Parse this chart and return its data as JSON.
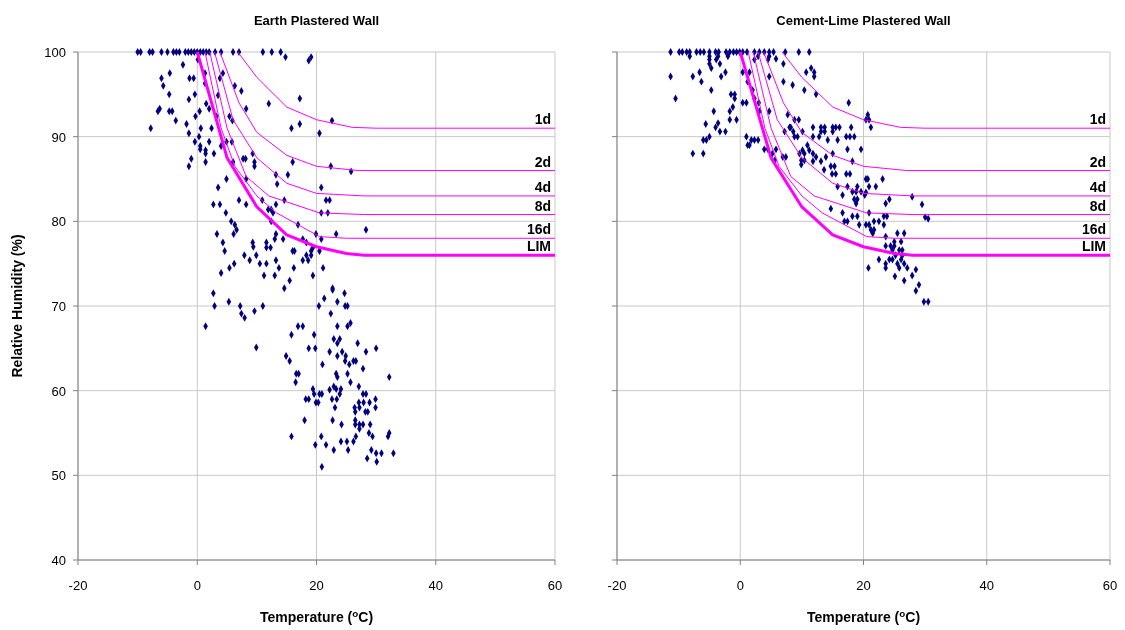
{
  "chart_data": [
    {
      "type": "scatter",
      "title": "Earth Plastered Wall",
      "xlabel": "Temperature ($^{o}$C)",
      "ylabel": "Relative Humidity (%)",
      "xlim": [
        -20,
        60
      ],
      "ylim": [
        40,
        100
      ],
      "xticks": [
        -20,
        0,
        20,
        40,
        60
      ],
      "yticks": [
        40,
        50,
        60,
        70,
        80,
        90,
        100
      ],
      "grid": true,
      "series": [
        {
          "marker": "diamond",
          "color": "#000080",
          "x": [
            -10,
            -9.5,
            -8,
            -7.5,
            -6,
            -5,
            -4,
            -3.5,
            -3,
            -2,
            -1.5,
            -1,
            -0.5,
            0,
            0.5,
            1,
            1.5,
            2,
            3,
            4,
            6,
            7,
            11,
            12.5,
            14,
            14.8,
            19.1,
            18.7,
            -2.4,
            0.1,
            -4.6,
            -6.0,
            -1.3,
            -0.6,
            1.3,
            -5.7,
            3.8,
            4.3,
            -4.7,
            -0.4,
            -1.4,
            1.3,
            3.5,
            6.3,
            7.4,
            -6.3,
            -6.6,
            -4.7,
            -4.2,
            -3.6,
            0.4,
            -0.3,
            1.5,
            2.0,
            3.2,
            5.4,
            5.9,
            8.2,
            12.0,
            17.2,
            -1.8,
            -1.4,
            -7.8,
            0.6,
            2.4,
            15.8,
            17.2,
            22.6,
            20.5,
            0.3,
            -0.4,
            0.5,
            0.5,
            1.4,
            1.4,
            2.8,
            2.0,
            4.0,
            4.9,
            5.8,
            -1.0,
            1.4,
            -1.4,
            7.7,
            8.1,
            9.3,
            9.6,
            9.6,
            16.0,
            3.5,
            4.9,
            6.0,
            8.2,
            13.2,
            13.4,
            15.2,
            22.4,
            25.8,
            20.8,
            2.7,
            3.8,
            7.0,
            8.2,
            10.9,
            11.9,
            12.4,
            12.7,
            13.2,
            14.6,
            4.8,
            21.6,
            22.2,
            20.8,
            21.9,
            12.4,
            5.7,
            6.3,
            6.6,
            6.1,
            3.3,
            4.3,
            4.6,
            13.2,
            13.0,
            14.4,
            9.3,
            9.4,
            11.6,
            11.6,
            12.3,
            16.9,
            17.7,
            18.3,
            16.0,
            16.3,
            19.4,
            19.1,
            19.9,
            20.8,
            20.5,
            23.3,
            28.3,
            7.9,
            8.8,
            9.9,
            10.5,
            11.6,
            13.2,
            17.7,
            18.6,
            19.1,
            18.3,
            21.1,
            19.4,
            4.0,
            5.4,
            6.2,
            16.2,
            13.7,
            15.5,
            14.6,
            22.7,
            11.2,
            13.0,
            2.7,
            5.3,
            2.9,
            7.2,
            11.0,
            7.4,
            7.95,
            9.6,
            1.4,
            9.9,
            14.9,
            15.5,
            16.6,
            17.0,
            16.5,
            15.8,
            16.9,
            17.7,
            18.7,
            19.8,
            19.6,
            20.4,
            21.3,
            22.7,
            24.7,
            23.5,
            24.8,
            25.2,
            22.4,
            25.7,
            23.5,
            25.2,
            22.9,
            23.9,
            23.5,
            26.9,
            22.2,
            24.3,
            23.5,
            24.9,
            28.3,
            30.0,
            24.8,
            26.2,
            26.6,
            25.5,
            21.0,
            23.3,
            25.2,
            23.5,
            27.8,
            25.7,
            27.1,
            32.2,
            19.4,
            22.2,
            22.9,
            23.3,
            24.1,
            19.6,
            20.5,
            20.9,
            18.2,
            18.7,
            22.6,
            23.4,
            23.9,
            19.9,
            20.3,
            27.8,
            28.3,
            27.1,
            27.9,
            28.9,
            29.9,
            26.4,
            27.2,
            29.9,
            23.1,
            26.5,
            28.2,
            28.6,
            22.7,
            24.2,
            26.5,
            26.5,
            27.2,
            27.8,
            29.0,
            27.2,
            18.0,
            32.2,
            28.8,
            29.4,
            32.0,
            15.8,
            20.8,
            26.6,
            24.1,
            25.1,
            26.2,
            19.8,
            21.6,
            22.9,
            25.3,
            29.2,
            30.0,
            30.9,
            32.9,
            28.5,
            30.1,
            20.9
          ],
          "values": [
            100,
            100,
            100,
            100,
            100,
            100,
            100,
            100,
            100,
            100,
            100,
            100,
            100,
            100,
            100,
            100,
            100,
            100,
            100,
            100,
            100,
            100,
            100,
            100,
            100,
            99.4,
            99.4,
            99.0,
            98.5,
            99.1,
            97.5,
            96.9,
            96.9,
            96.9,
            97.5,
            96.0,
            96.9,
            97.5,
            95.0,
            95.0,
            94.4,
            96.3,
            94.9,
            96.0,
            95.4,
            93.3,
            93.0,
            93.0,
            93.0,
            91.9,
            93.0,
            92.4,
            93.9,
            93.3,
            92.4,
            92.4,
            91.9,
            93.3,
            93.9,
            94.5,
            91.5,
            90.4,
            91.0,
            91.0,
            91.0,
            91.0,
            91.5,
            91.9,
            90.4,
            90.0,
            89.4,
            88.9,
            88.5,
            88.4,
            88.0,
            88.0,
            89.4,
            88.9,
            89.4,
            89.4,
            87.4,
            87.0,
            86.5,
            87.4,
            87.4,
            88.0,
            87.0,
            86.5,
            87.0,
            84.0,
            85.0,
            87.0,
            85.0,
            85.5,
            84.4,
            85.5,
            86.5,
            85.9,
            84.0,
            82.0,
            82.0,
            82.5,
            82.0,
            82.5,
            81.4,
            81.4,
            81.0,
            82.0,
            82.5,
            81.0,
            82.5,
            82.5,
            81.0,
            81.0,
            80.0,
            80.0,
            79.6,
            79.0,
            78.5,
            78.5,
            77.5,
            76.5,
            78.5,
            77.9,
            77.9,
            77.5,
            77.0,
            77.5,
            76.9,
            76.9,
            79.6,
            77.9,
            77.5,
            76.5,
            76.5,
            76.9,
            76.5,
            78.5,
            77.9,
            76.5,
            78.5,
            79.0,
            76.0,
            75.4,
            76.0,
            75.0,
            75.0,
            75.4,
            75.4,
            75.4,
            76.0,
            76.0,
            74.5,
            73.6,
            73.9,
            74.5,
            75.0,
            74.5,
            74.5,
            73.0,
            72.1,
            72.1,
            73.6,
            73.6,
            71.5,
            70.5,
            70.0,
            70.0,
            70.0,
            69.1,
            68.6,
            69.4,
            67.6,
            65.1,
            64.1,
            63.5,
            62.0,
            62.0,
            61.0,
            66.6,
            67.6,
            67.6,
            65.0,
            65.0,
            66.6,
            70.0,
            70.9,
            71.9,
            71.5,
            70.5,
            70.0,
            70.0,
            69.1,
            68.0,
            67.6,
            67.6,
            66.1,
            66.1,
            65.6,
            65.6,
            64.6,
            64.6,
            64.1,
            64.1,
            64.6,
            65.0,
            63.5,
            63.5,
            63.5,
            63.1,
            63.1,
            62.0,
            62.0,
            61.6,
            62.6,
            61.0,
            60.5,
            61.6,
            60.2,
            60.1,
            60.5,
            60.2,
            60.2,
            59.6,
            59.6,
            59.6,
            59.0,
            59.0,
            59.0,
            59.0,
            59.6,
            58.6,
            58.6,
            59.6,
            59.6,
            58.6,
            58.6,
            58.6,
            59.0,
            58.0,
            58.0,
            58.0,
            58.0,
            57.5,
            57.5,
            57.5,
            56.5,
            56.0,
            56.5,
            56.0,
            56.0,
            56.0,
            56.0,
            55.5,
            56.5,
            55.0,
            55.0,
            54.6,
            54.6,
            54.6,
            54.6,
            54.6,
            54.0,
            54.0,
            54.0,
            53.6,
            53.6,
            53.0,
            53.0,
            53.0,
            52.6,
            52.6,
            52.6,
            52.0,
            51.6,
            51.0
          ]
        },
        {
          "type": "line",
          "name": "1d",
          "color": "#ff00ff",
          "x": [
            6.8,
            10,
            15,
            20,
            26,
            30,
            60
          ],
          "values": [
            100,
            97,
            93.5,
            92,
            91.1,
            91,
            91
          ]
        },
        {
          "type": "line",
          "name": "2d",
          "color": "#ff00ff",
          "x": [
            3.8,
            7,
            10,
            15,
            20,
            27,
            60
          ],
          "values": [
            100,
            94,
            90.5,
            87.8,
            86.5,
            86,
            86
          ]
        },
        {
          "type": "line",
          "name": "4d",
          "color": "#ff00ff",
          "x": [
            2.9,
            6,
            10,
            15,
            20,
            28,
            60
          ],
          "values": [
            100,
            92,
            87.5,
            84.5,
            83.3,
            83,
            83
          ]
        },
        {
          "type": "line",
          "name": "8d",
          "color": "#ff00ff",
          "x": [
            2.1,
            5,
            8.2,
            12,
            20.5,
            28,
            60
          ],
          "values": [
            100,
            91,
            85.3,
            83,
            81,
            80.8,
            80.8
          ]
        },
        {
          "type": "line",
          "name": "16d",
          "color": "#ff00ff",
          "x": [
            1.3,
            4,
            6.3,
            10,
            13.3,
            20.5,
            25,
            60
          ],
          "values": [
            100,
            91,
            86.5,
            83,
            81,
            78.2,
            78,
            78
          ]
        },
        {
          "type": "line",
          "name": "LIM",
          "color": "#ff00ff",
          "x": [
            0,
            5,
            10,
            15,
            20,
            25,
            28,
            60
          ],
          "values": [
            100,
            87.5,
            81.7,
            78.4,
            77,
            76.2,
            76,
            76
          ]
        }
      ]
    },
    {
      "type": "scatter",
      "title": "Cement-Lime Plastered Wall",
      "xlabel": "Temperature ($^{o}$C)",
      "xlim": [
        -20,
        60
      ],
      "ylim": [
        40,
        100
      ],
      "xticks": [
        -20,
        0,
        20,
        40,
        60
      ],
      "yticks": [
        40,
        50,
        60,
        70,
        80,
        90,
        100
      ],
      "grid": true,
      "tick_labels": "x",
      "series": [
        {
          "marker": "diamond",
          "color": "#000080",
          "x": [
            -11.3,
            -9.9,
            -9.4,
            -8.7,
            -8.2,
            -7.1,
            -6.5,
            -5.9,
            -5.0,
            -4.0,
            -3.5,
            -2.3,
            -1.7,
            -1.1,
            -0.6,
            -0.1,
            0.4,
            1.1,
            2.3,
            3.1,
            3.9,
            4.7,
            5.4,
            7.3,
            9.5,
            11.2,
            -8.2,
            -5.0,
            -3.6,
            -2.0,
            2.9,
            4.7,
            5.8,
            -5.0,
            -3.9,
            -5.0,
            -3.3,
            -4.7,
            2.3,
            4.5,
            7.0,
            11.5,
            10.7,
            12.0,
            12.0,
            -11.3,
            -7.7,
            -6.6,
            -6.3,
            -3.1,
            -2.4,
            0.4,
            1.5,
            1.2,
            4.7,
            7.0,
            8.5,
            10.4,
            12.3,
            -4.7,
            -10.5,
            -1.5,
            -0.9,
            -0.9,
            2.0,
            2.3,
            3.0,
            3.1,
            0.4,
            1.0,
            -4.3,
            -1.7,
            -1.2,
            -0.6,
            -1.7,
            -5.6,
            -3.6,
            -4.0,
            -3.3,
            -2.4,
            -6.0,
            -5.5,
            -5.0,
            -7.7,
            -6.0,
            4.7,
            7.7,
            8.8,
            9.5,
            17.6,
            20.7,
            20.4,
            20.9,
            21.2,
            1.0,
            1.8,
            2.3,
            2.9,
            1.2,
            1.5,
            3.9,
            4.5,
            5.8,
            5.2,
            5.6,
            6.9,
            7.4,
            8.0,
            8.2,
            7.2,
            8.6,
            10.1,
            11.8,
            13.1,
            13.7,
            15.0,
            15.5,
            16.1,
            13.1,
            13.7,
            15.0,
            18.0,
            8.8,
            9.3,
            11.8,
            12.8,
            14.2,
            15.8,
            17.2,
            17.8,
            18.5,
            10.9,
            10.1,
            11.2,
            17.4,
            19.6,
            9.6,
            10.4,
            11.8,
            12.3,
            13.9,
            15.0,
            9.9,
            10.4,
            11.8,
            9.9,
            13.1,
            18.2,
            14.7,
            15.3,
            13.6,
            14.9,
            15.5,
            17.2,
            17.8,
            20.4,
            20.7,
            23.1,
            15.8,
            17.4,
            19.0,
            20.9,
            22.0,
            16.6,
            18.2,
            18.8,
            19.6,
            20.4,
            20.2,
            23.6,
            24.2,
            18.5,
            19.0,
            18.8,
            14.7,
            16.6,
            20.9,
            23.3,
            23.8,
            18.2,
            19.0,
            16.9,
            17.4,
            19.3,
            20.4,
            20.9,
            21.7,
            22.5,
            23.3,
            21.2,
            21.7,
            21.5,
            23.6,
            25.5,
            26.6,
            25.0,
            26.1,
            23.6,
            24.4,
            25.0,
            24.7,
            25.8,
            26.3,
            25.2,
            26.3,
            22.5,
            24.2,
            24.7,
            26.1,
            23.6,
            25.5,
            26.6,
            20.8,
            23.6,
            25.8,
            27.1,
            25.1,
            26.6,
            27.9,
            28.5,
            27.9,
            29.5,
            30,
            30.5,
            29.8,
            30.5,
            29,
            28.5
          ],
          "values": [
            100,
            100,
            100,
            100,
            100,
            100,
            100,
            100,
            100,
            100,
            100,
            100,
            100,
            100,
            100,
            100,
            100,
            100,
            100,
            100,
            100,
            100,
            100,
            100,
            100,
            100,
            99.5,
            99.5,
            99.5,
            99.5,
            99.5,
            99.5,
            99.2,
            99.1,
            99.1,
            98.6,
            98.6,
            98.1,
            99.1,
            99.1,
            98.6,
            98.1,
            97.6,
            97.6,
            97.1,
            97.1,
            97.1,
            97.6,
            96.5,
            97.1,
            97.6,
            97.6,
            97.6,
            96.5,
            97.1,
            96.5,
            96.1,
            95.5,
            95.0,
            95.5,
            94.5,
            95.0,
            95.0,
            94.5,
            95.5,
            94.5,
            94.0,
            93.0,
            94.0,
            94.0,
            93.0,
            93.0,
            93.5,
            92.0,
            92.0,
            91.5,
            91.6,
            91.1,
            90.6,
            90.6,
            89.6,
            89.6,
            90.0,
            88.0,
            88.0,
            93.0,
            92.6,
            92.0,
            92.0,
            94.0,
            92.6,
            92.0,
            92.0,
            91.1,
            90.0,
            89.6,
            89.6,
            89.6,
            89.0,
            89.0,
            88.5,
            88.5,
            88.5,
            88.0,
            87.2,
            87.6,
            87.6,
            91.1,
            91.1,
            90.6,
            90.6,
            90.6,
            91.1,
            91.1,
            91.1,
            91.1,
            91.1,
            91.1,
            90.6,
            90.6,
            90.6,
            91.1,
            90.0,
            90.0,
            90.0,
            90.0,
            89.6,
            89.6,
            90.0,
            90.0,
            90.0,
            89.0,
            88.4,
            88.4,
            88.5,
            88.5,
            88.0,
            88.0,
            88.0,
            87.6,
            87.6,
            88.0,
            87.2,
            87.2,
            87.1,
            86.7,
            87.1,
            87.1,
            86.5,
            86.5,
            86.1,
            85.6,
            85.6,
            85.6,
            85.6,
            85.0,
            85.0,
            85.0,
            84.1,
            84.1,
            84.1,
            84.1,
            84.1,
            83.1,
            83.5,
            83.5,
            83.5,
            83.4,
            83.1,
            82.1,
            82.6,
            82.6,
            82.6,
            82.1,
            81.5,
            81.0,
            81.0,
            80.6,
            80.6,
            80.6,
            80.6,
            80.0,
            80.0,
            79.6,
            79.6,
            79.6,
            80.0,
            80.0,
            79.6,
            79.0,
            79.0,
            78.6,
            78.2,
            78.6,
            78.6,
            77.6,
            77.6,
            77.1,
            77.1,
            77.1,
            76.6,
            76.6,
            76.6,
            76.0,
            76.0,
            75.5,
            75.5,
            75.5,
            75.5,
            75.0,
            75.0,
            75.0,
            74.5,
            74.5,
            74.5,
            74.5,
            73.5,
            73.0,
            73.6,
            74.3,
            82.9,
            82,
            80.5,
            80.3,
            70.5,
            70.5,
            72.5,
            71.8
          ]
        },
        {
          "type": "line",
          "name": "1d",
          "color": "#ff00ff",
          "x": [
            6.8,
            10,
            15,
            20,
            26,
            30,
            60
          ],
          "values": [
            100,
            97,
            93.5,
            92,
            91.1,
            91,
            91
          ]
        },
        {
          "type": "line",
          "name": "2d",
          "color": "#ff00ff",
          "x": [
            3.8,
            7,
            10,
            15,
            20,
            27,
            60
          ],
          "values": [
            100,
            94,
            90.5,
            87.8,
            86.5,
            86,
            86
          ]
        },
        {
          "type": "line",
          "name": "4d",
          "color": "#ff00ff",
          "x": [
            2.9,
            6,
            10,
            15,
            20,
            28,
            60
          ],
          "values": [
            100,
            92,
            87.5,
            84.5,
            83.3,
            83,
            83
          ]
        },
        {
          "type": "line",
          "name": "8d",
          "color": "#ff00ff",
          "x": [
            2.1,
            5,
            8.2,
            12,
            20.5,
            28,
            60
          ],
          "values": [
            100,
            91,
            85.3,
            83,
            81,
            80.8,
            80.8
          ]
        },
        {
          "type": "line",
          "name": "16d",
          "color": "#ff00ff",
          "x": [
            1.3,
            4,
            6.3,
            10,
            13.3,
            20.5,
            25,
            60
          ],
          "values": [
            100,
            91,
            86.5,
            83,
            81,
            78.2,
            78,
            78
          ]
        },
        {
          "type": "line",
          "name": "LIM",
          "color": "#ff00ff",
          "x": [
            0,
            5,
            10,
            15,
            20,
            25,
            28,
            60
          ],
          "values": [
            100,
            87.5,
            81.7,
            78.4,
            77,
            76.2,
            76,
            76
          ]
        }
      ]
    }
  ]
}
